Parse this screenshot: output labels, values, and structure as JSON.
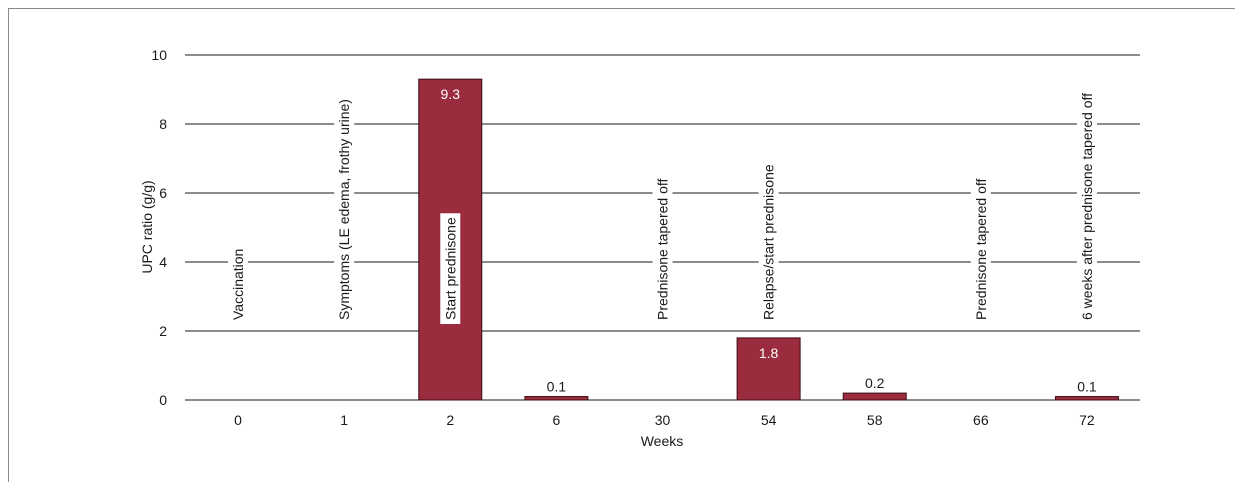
{
  "chart_data": {
    "type": "bar",
    "categories": [
      "0",
      "1",
      "2",
      "6",
      "30",
      "54",
      "58",
      "66",
      "72"
    ],
    "values": [
      0,
      0,
      9.3,
      0.1,
      0,
      1.8,
      0.2,
      0,
      0.1
    ],
    "data_labels": [
      "",
      "",
      "9.3",
      "0.1",
      "",
      "1.8",
      "0.2",
      "",
      "0.1"
    ],
    "annotations": [
      "Vaccination",
      "Symptoms (LE edema, frothy urine)",
      "Start prednisone",
      "",
      "Prednisone tapered off",
      "Relapse/start prednisone",
      "",
      "Prednisone tapered off",
      "6 weeks after prednisone tapered off"
    ],
    "title": "",
    "xlabel": "Weeks",
    "ylabel": "UPC ratio (g/g)",
    "ylim": [
      0,
      10
    ],
    "yticks": [
      "0",
      "2",
      "4",
      "6",
      "8",
      "10"
    ],
    "grid": true,
    "colors": {
      "bar": "#9b2c3e",
      "bar_edge": "#3a0d16",
      "grid": "#1a1a1a"
    }
  }
}
